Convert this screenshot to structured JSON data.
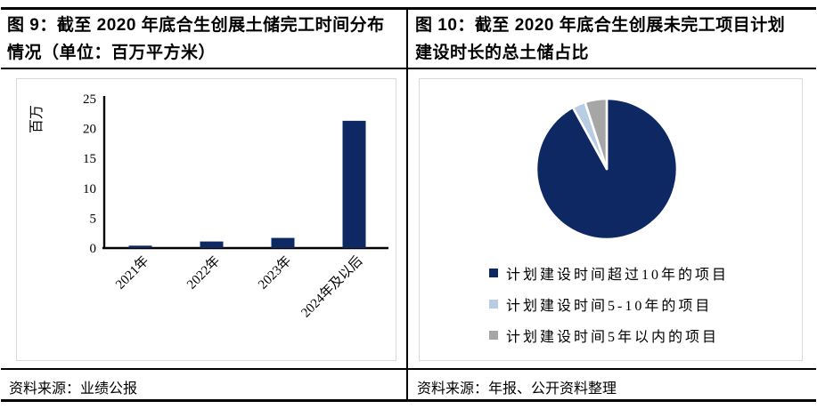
{
  "left_panel": {
    "title": "图 9：截至 2020 年底合生创展土储完工时间分布情况（单位：百万平方米）",
    "title_line1": "图 9：截至 2020 年底合生创展土储完工时间分布",
    "title_line2": "情况（单位：百万平方米）",
    "source": "资料来源：业绩公报"
  },
  "right_panel": {
    "title": "图 10：截至 2020 年底合生创展未完工项目计划建设时长的总土储占比",
    "title_line1": "图 10：截至 2020 年底合生创展未完工项目计划",
    "title_line2": "建设时长的总土储占比",
    "source": "资料来源：年报、公开资料整理"
  },
  "colors": {
    "navy": "#0d2862",
    "light_blue": "#b8cce4",
    "gray": "#a6a6a6",
    "axis_black": "#000000",
    "box_border": "#d9d9d9"
  },
  "chart_data": [
    {
      "type": "bar",
      "title": "截至 2020 年底合生创展土储完工时间分布情况",
      "unit": "百万平方米",
      "categories": [
        "2021年",
        "2022年",
        "2023年",
        "2024年及以后"
      ],
      "values": [
        0.4,
        1.1,
        1.7,
        21.3
      ],
      "ylabel": "百万",
      "xlabel": "",
      "yticks": [
        0,
        5,
        10,
        15,
        20,
        25
      ],
      "ylim": [
        0,
        25
      ],
      "grid": false,
      "bar_color": "#0d2862"
    },
    {
      "type": "pie",
      "title": "截至 2020 年底合生创展未完工项目计划建设时长的总土储占比",
      "labels": [
        "计划建设时间超过10年的项目",
        "计划建设时间5-10年的项目",
        "计划建设时间5年以内的项目"
      ],
      "values": [
        92,
        3,
        5
      ],
      "colors": [
        "#0d2862",
        "#b8cce4",
        "#a6a6a6"
      ],
      "start_angle": "top",
      "direction": "clockwise",
      "legend_position": "bottom-left"
    }
  ]
}
